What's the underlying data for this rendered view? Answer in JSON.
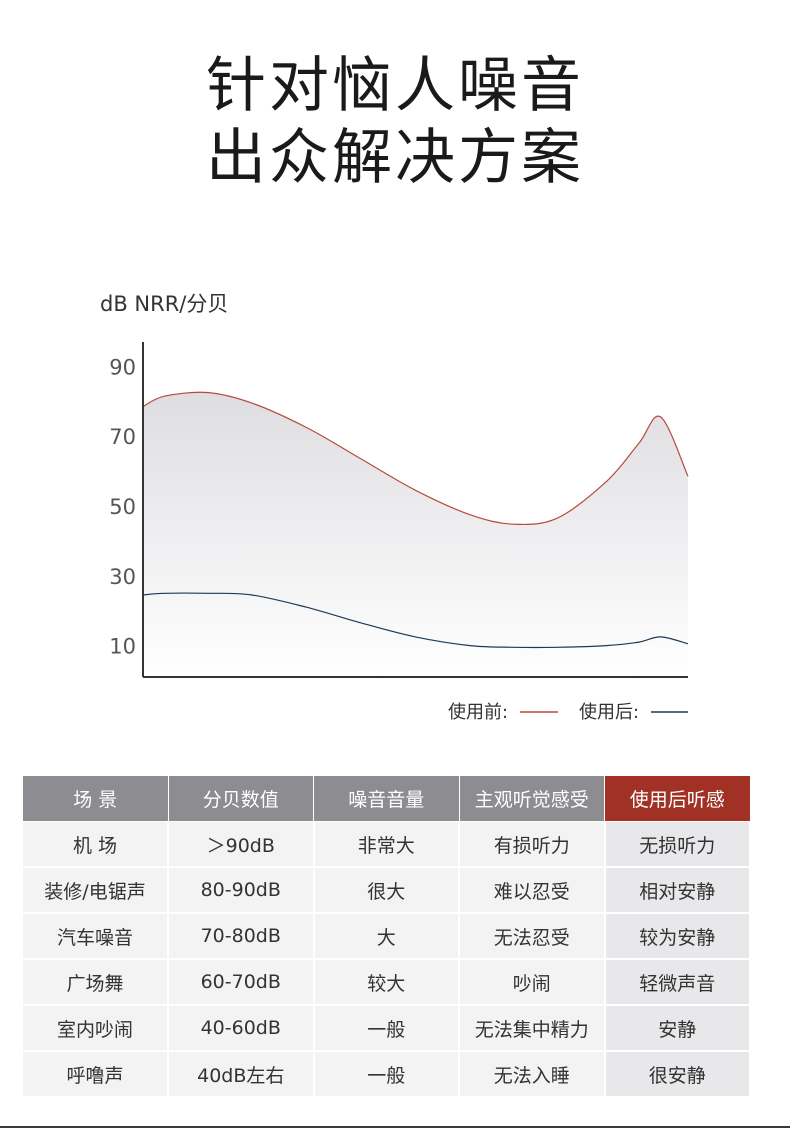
{
  "headline": {
    "line1": "针对恼人噪音",
    "line2": "出众解决方案"
  },
  "chart_data": {
    "type": "area",
    "ylabel": "dB NRR/分贝",
    "yticks": [
      90,
      70,
      50,
      30,
      10
    ],
    "ylim": [
      1,
      97
    ],
    "xlim": [
      0,
      10
    ],
    "x": [
      0,
      0.4,
      1.2,
      2.0,
      3.0,
      4.0,
      5.0,
      6.0,
      6.8,
      7.6,
      8.5,
      9.1,
      9.5,
      10.0
    ],
    "series": [
      {
        "name": "使用前:",
        "color": "#b84a3c",
        "values": [
          78.5,
          81.5,
          82.5,
          79.5,
          72.5,
          63.5,
          54.5,
          47.5,
          44.8,
          46.5,
          57,
          68,
          75.5,
          58.5
        ]
      },
      {
        "name": "使用后:",
        "color": "#1e3a56",
        "values": [
          24.5,
          25,
          25,
          24.5,
          21,
          16.5,
          12.5,
          10,
          9.5,
          9.5,
          10,
          11,
          12.5,
          10.5
        ]
      }
    ],
    "legend_position": "bottom-right",
    "grid": false
  },
  "table": {
    "headers": [
      "场 景",
      "分贝数值",
      "噪音音量",
      "主观听觉感受",
      "使用后听感"
    ],
    "rows": [
      [
        "机 场",
        "＞90dB",
        "非常大",
        "有损听力",
        "无损听力"
      ],
      [
        "装修/电锯声",
        "80-90dB",
        "很大",
        "难以忍受",
        "相对安静"
      ],
      [
        "汽车噪音",
        "70-80dB",
        "大",
        "无法忍受",
        "较为安静"
      ],
      [
        "广场舞",
        "60-70dB",
        "较大",
        "吵闹",
        "轻微声音"
      ],
      [
        "室内吵闹",
        "40-60dB",
        "一般",
        "无法集中精力",
        "安静"
      ],
      [
        "呼噜声",
        "40dB左右",
        "一般",
        "无法入睡",
        "很安静"
      ]
    ]
  }
}
